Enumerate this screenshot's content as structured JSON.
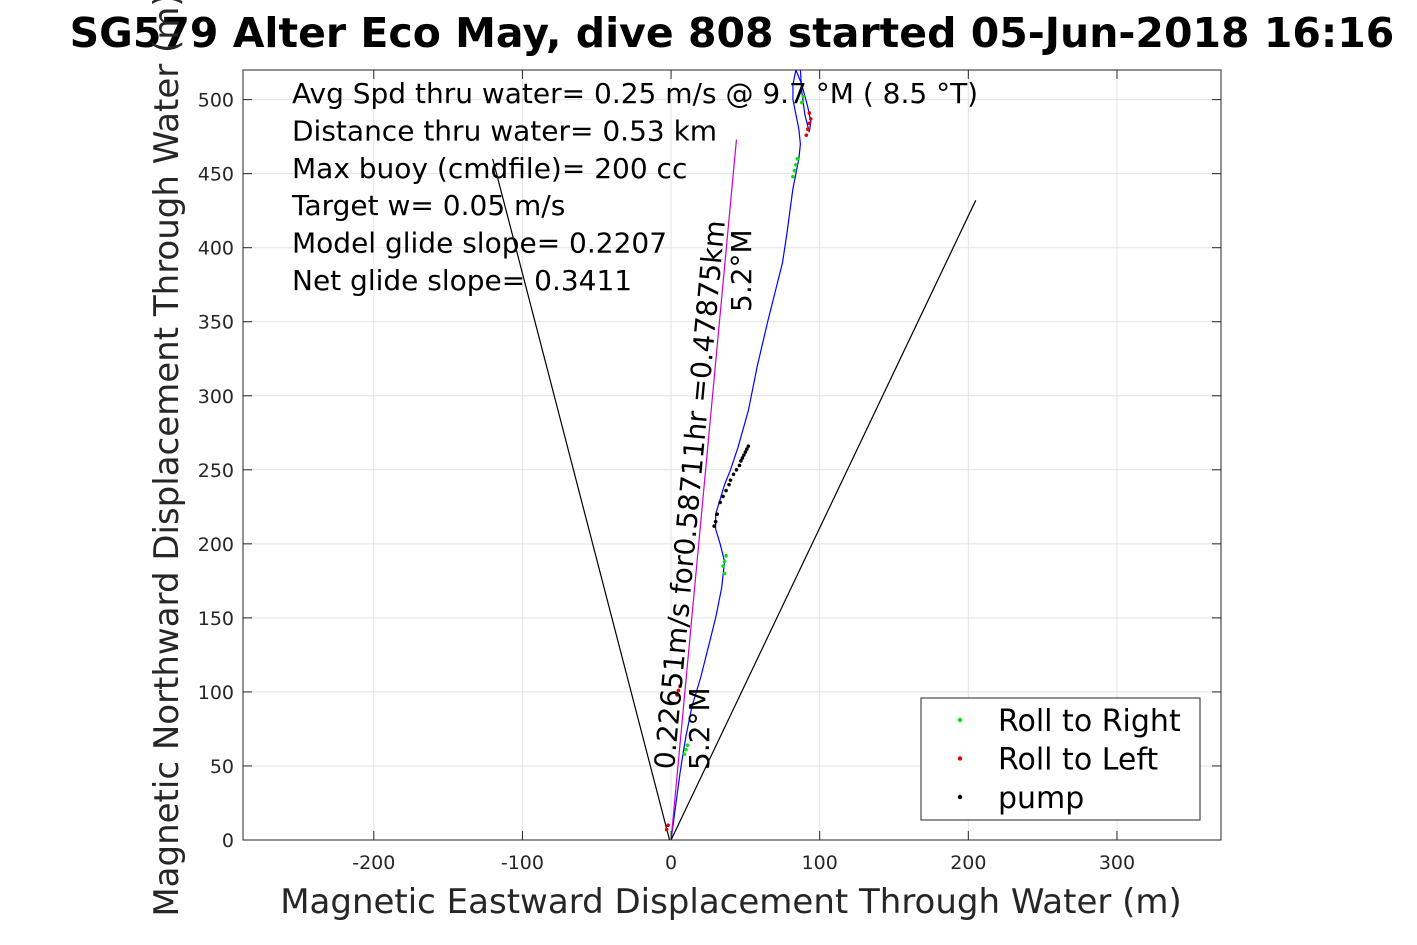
{
  "chart_data": {
    "type": "line",
    "title": "SG579 Alter Eco May, dive 808 started 05-Jun-2018 16:16",
    "xlabel": "Magnetic Eastward Displacement Through Water (m)",
    "ylabel": "Magnetic Northward Displacement Through Water (m)",
    "xlim": [
      -288,
      370
    ],
    "ylim": [
      0,
      520
    ],
    "x_ticks": [
      -200,
      -100,
      0,
      100,
      200,
      300
    ],
    "x_tick_labels": [
      "-200",
      "-100",
      "0",
      "100",
      "200",
      "300"
    ],
    "y_ticks": [
      0,
      50,
      100,
      150,
      200,
      250,
      300,
      350,
      400,
      450,
      500
    ],
    "y_tick_labels": [
      "0",
      "50",
      "100",
      "150",
      "200",
      "250",
      "300",
      "350",
      "400",
      "450",
      "500"
    ],
    "grid": true,
    "legend_position": "bottom-right",
    "annotations": [
      "Avg Spd thru water=  0.25 m/s @   9.7 °M (  8.5 °T)",
      "Distance thru water=  0.53 km",
      "Max buoy (cmdfile)= 200 cc",
      "Target w= 0.05 m/s",
      "Model glide slope= 0.2207",
      "Net glide slope= 0.3411"
    ],
    "rotated_labels": [
      "0.22651m/s for0.58711hr =0.47875km",
      "5.2°M",
      "5.2°M"
    ],
    "series": [
      {
        "name": "",
        "color": "#0000ff",
        "x": [
          0,
          2,
          4,
          6,
          8,
          10,
          14,
          20,
          25,
          30,
          34,
          36,
          33,
          30,
          30,
          33,
          36,
          40,
          45,
          52,
          58,
          65,
          70,
          75,
          78,
          80,
          82,
          84,
          86,
          87,
          86,
          84,
          82,
          82,
          84,
          88,
          92,
          94,
          93,
          90,
          88,
          87,
          90,
          96,
          110
        ],
        "y": [
          0,
          15,
          30,
          45,
          58,
          70,
          90,
          110,
          130,
          150,
          170,
          188,
          200,
          210,
          220,
          230,
          240,
          250,
          265,
          290,
          320,
          350,
          370,
          390,
          410,
          425,
          440,
          450,
          460,
          470,
          480,
          490,
          500,
          510,
          520,
          510,
          495,
          485,
          478,
          490,
          505,
          520,
          530,
          545,
          560
        ]
      },
      {
        "name": "",
        "color": "#cc00cc",
        "x": [
          0,
          44
        ],
        "y": [
          0,
          473
        ]
      },
      {
        "name": "",
        "color": "#000000",
        "x": [
          -1,
          -120
        ],
        "y": [
          0,
          460
        ]
      },
      {
        "name": "",
        "color": "#000000",
        "x": [
          0,
          205
        ],
        "y": [
          0,
          432
        ]
      },
      {
        "name": "Roll to Right",
        "color": "#00e600",
        "type": "scatter",
        "x": [
          9,
          10,
          11,
          35,
          36,
          37,
          36,
          82,
          83,
          84,
          85,
          88,
          89
        ],
        "y": [
          58,
          61,
          64,
          185,
          188,
          192,
          180,
          448,
          452,
          456,
          460,
          498,
          502
        ]
      },
      {
        "name": "Roll to Left",
        "color": "#e60000",
        "type": "scatter",
        "x": [
          -3,
          -2,
          4,
          5,
          6,
          91,
          92,
          93,
          94,
          93
        ],
        "y": [
          7,
          10,
          98,
          101,
          104,
          476,
          480,
          484,
          487,
          491
        ]
      },
      {
        "name": "pump",
        "color": "#000000",
        "type": "scatter",
        "x": [
          29,
          30,
          31,
          33,
          35,
          37,
          39,
          40,
          42,
          44,
          46,
          47,
          48,
          49,
          50,
          51,
          52
        ],
        "y": [
          212,
          215,
          220,
          228,
          232,
          236,
          240,
          243,
          247,
          250,
          253,
          256,
          258,
          260,
          262,
          264,
          266
        ]
      }
    ],
    "legend": [
      "Roll to Right",
      "Roll to Left",
      "pump"
    ]
  }
}
